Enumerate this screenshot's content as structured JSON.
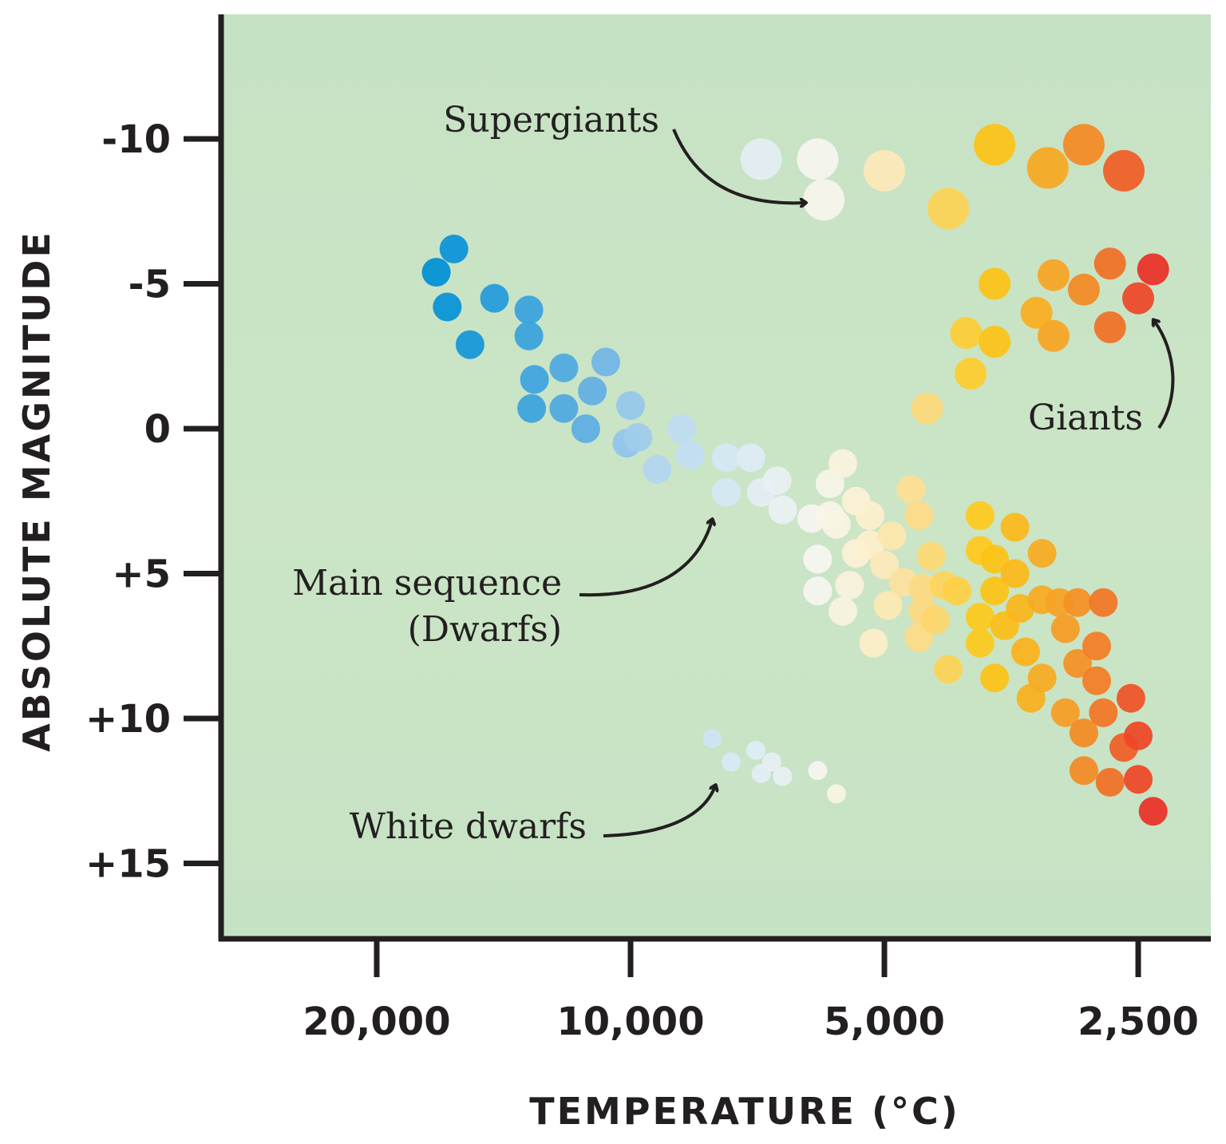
{
  "chart_data": {
    "type": "scatter",
    "title": "",
    "xlabel": "TEMPERATURE (°C)",
    "ylabel": "ABSOLUTE MAGNITUDE",
    "x_scale": "log",
    "x_reversed": true,
    "y_reversed": true,
    "xlim": [
      34000,
      1800
    ],
    "ylim": [
      -14,
      18
    ],
    "x_ticks": [
      20000,
      10000,
      5000,
      2500
    ],
    "x_tick_labels": [
      "20,000",
      "10,000",
      "5,000",
      "2,500"
    ],
    "y_ticks": [
      -10,
      -5,
      0,
      5,
      10,
      15
    ],
    "y_tick_labels": [
      "-10",
      "-5",
      "0",
      "+5",
      "+10",
      "+15"
    ],
    "grid": false,
    "legend": "none",
    "background_color": "#c6e2c4",
    "annotations": {
      "supergiants": "Supergiants",
      "giants": "Giants",
      "main_sequence_line1": "Main sequence",
      "main_sequence_line2": "(Dwarfs)",
      "white_dwarfs": "White dwarfs"
    },
    "groups": {
      "supergiants": [
        {
          "t": 7000,
          "m": -9.3
        },
        {
          "t": 6000,
          "m": -9.3
        },
        {
          "t": 5900,
          "m": -7.9
        },
        {
          "t": 5000,
          "m": -8.9
        },
        {
          "t": 4200,
          "m": -7.6
        },
        {
          "t": 3700,
          "m": -9.8
        },
        {
          "t": 3200,
          "m": -9.0
        },
        {
          "t": 2900,
          "m": -9.8
        },
        {
          "t": 2600,
          "m": -8.9
        }
      ],
      "giants": [
        {
          "t": 4450,
          "m": -0.7
        },
        {
          "t": 4000,
          "m": -3.3
        },
        {
          "t": 3950,
          "m": -1.9
        },
        {
          "t": 3700,
          "m": -5.0
        },
        {
          "t": 3700,
          "m": -3.0
        },
        {
          "t": 3300,
          "m": -4.0
        },
        {
          "t": 3150,
          "m": -5.3
        },
        {
          "t": 3150,
          "m": -3.2
        },
        {
          "t": 2900,
          "m": -4.8
        },
        {
          "t": 2700,
          "m": -5.7
        },
        {
          "t": 2700,
          "m": -3.5
        },
        {
          "t": 2500,
          "m": -4.5
        },
        {
          "t": 2400,
          "m": -5.5
        }
      ],
      "main_sequence": [
        {
          "t": 17000,
          "m": -5.4
        },
        {
          "t": 16200,
          "m": -6.2
        },
        {
          "t": 16500,
          "m": -4.2
        },
        {
          "t": 15500,
          "m": -2.9
        },
        {
          "t": 14500,
          "m": -4.5
        },
        {
          "t": 13200,
          "m": -4.1
        },
        {
          "t": 13200,
          "m": -3.2
        },
        {
          "t": 13000,
          "m": -1.7
        },
        {
          "t": 13100,
          "m": -0.7
        },
        {
          "t": 12000,
          "m": -2.1
        },
        {
          "t": 12000,
          "m": -0.7
        },
        {
          "t": 11100,
          "m": -1.3
        },
        {
          "t": 10700,
          "m": -2.3
        },
        {
          "t": 11300,
          "m": 0.0
        },
        {
          "t": 10000,
          "m": -0.8
        },
        {
          "t": 10100,
          "m": 0.5
        },
        {
          "t": 9800,
          "m": 0.3
        },
        {
          "t": 9300,
          "m": 1.4
        },
        {
          "t": 8700,
          "m": 0.0
        },
        {
          "t": 8500,
          "m": 0.9
        },
        {
          "t": 7700,
          "m": 1.0
        },
        {
          "t": 7200,
          "m": 1.0
        },
        {
          "t": 7000,
          "m": 2.2
        },
        {
          "t": 7700,
          "m": 2.2
        },
        {
          "t": 6700,
          "m": 1.8
        },
        {
          "t": 6600,
          "m": 2.8
        },
        {
          "t": 6100,
          "m": 3.1
        },
        {
          "t": 5800,
          "m": 1.9
        },
        {
          "t": 5800,
          "m": 3.0
        },
        {
          "t": 6000,
          "m": 4.5
        },
        {
          "t": 5700,
          "m": 3.3
        },
        {
          "t": 5600,
          "m": 1.2
        },
        {
          "t": 5400,
          "m": 2.5
        },
        {
          "t": 5400,
          "m": 4.3
        },
        {
          "t": 5200,
          "m": 4.0
        },
        {
          "t": 6000,
          "m": 5.6
        },
        {
          "t": 5500,
          "m": 5.4
        },
        {
          "t": 5600,
          "m": 6.3
        },
        {
          "t": 5200,
          "m": 3.0
        },
        {
          "t": 4900,
          "m": 3.7
        },
        {
          "t": 5000,
          "m": 4.7
        },
        {
          "t": 4950,
          "m": 6.1
        },
        {
          "t": 5150,
          "m": 7.4
        },
        {
          "t": 4650,
          "m": 2.1
        },
        {
          "t": 4550,
          "m": 3.0
        },
        {
          "t": 4750,
          "m": 5.3
        },
        {
          "t": 4500,
          "m": 5.5
        },
        {
          "t": 4500,
          "m": 6.3
        },
        {
          "t": 4550,
          "m": 7.2
        },
        {
          "t": 4400,
          "m": 4.4
        },
        {
          "t": 4350,
          "m": 6.6
        },
        {
          "t": 4250,
          "m": 5.4
        },
        {
          "t": 4200,
          "m": 8.3
        },
        {
          "t": 4100,
          "m": 5.6
        },
        {
          "t": 3850,
          "m": 3.0
        },
        {
          "t": 3850,
          "m": 4.2
        },
        {
          "t": 3850,
          "m": 6.5
        },
        {
          "t": 3850,
          "m": 7.4
        },
        {
          "t": 3700,
          "m": 4.5
        },
        {
          "t": 3700,
          "m": 5.6
        },
        {
          "t": 3600,
          "m": 6.8
        },
        {
          "t": 3700,
          "m": 8.6
        },
        {
          "t": 3500,
          "m": 3.4
        },
        {
          "t": 3500,
          "m": 5.0
        },
        {
          "t": 3450,
          "m": 6.2
        },
        {
          "t": 3400,
          "m": 7.7
        },
        {
          "t": 3350,
          "m": 9.3
        },
        {
          "t": 3250,
          "m": 4.3
        },
        {
          "t": 3250,
          "m": 5.9
        },
        {
          "t": 3250,
          "m": 8.6
        },
        {
          "t": 3100,
          "m": 6.0
        },
        {
          "t": 3050,
          "m": 6.9
        },
        {
          "t": 3050,
          "m": 9.8
        },
        {
          "t": 2950,
          "m": 6.0
        },
        {
          "t": 2950,
          "m": 8.1
        },
        {
          "t": 2900,
          "m": 10.5
        },
        {
          "t": 2900,
          "m": 11.8
        },
        {
          "t": 2800,
          "m": 7.5
        },
        {
          "t": 2800,
          "m": 8.7
        },
        {
          "t": 2750,
          "m": 6.0
        },
        {
          "t": 2750,
          "m": 9.8
        },
        {
          "t": 2700,
          "m": 12.2
        },
        {
          "t": 2600,
          "m": 11.0
        },
        {
          "t": 2550,
          "m": 9.3
        },
        {
          "t": 2500,
          "m": 10.6
        },
        {
          "t": 2500,
          "m": 12.1
        },
        {
          "t": 2400,
          "m": 13.2
        }
      ],
      "white_dwarfs": [
        {
          "t": 8000,
          "m": 10.7
        },
        {
          "t": 7600,
          "m": 11.5
        },
        {
          "t": 7100,
          "m": 11.1
        },
        {
          "t": 7000,
          "m": 11.9
        },
        {
          "t": 6800,
          "m": 11.5
        },
        {
          "t": 6600,
          "m": 12.0
        },
        {
          "t": 6000,
          "m": 11.8
        },
        {
          "t": 5700,
          "m": 12.6
        }
      ]
    }
  }
}
